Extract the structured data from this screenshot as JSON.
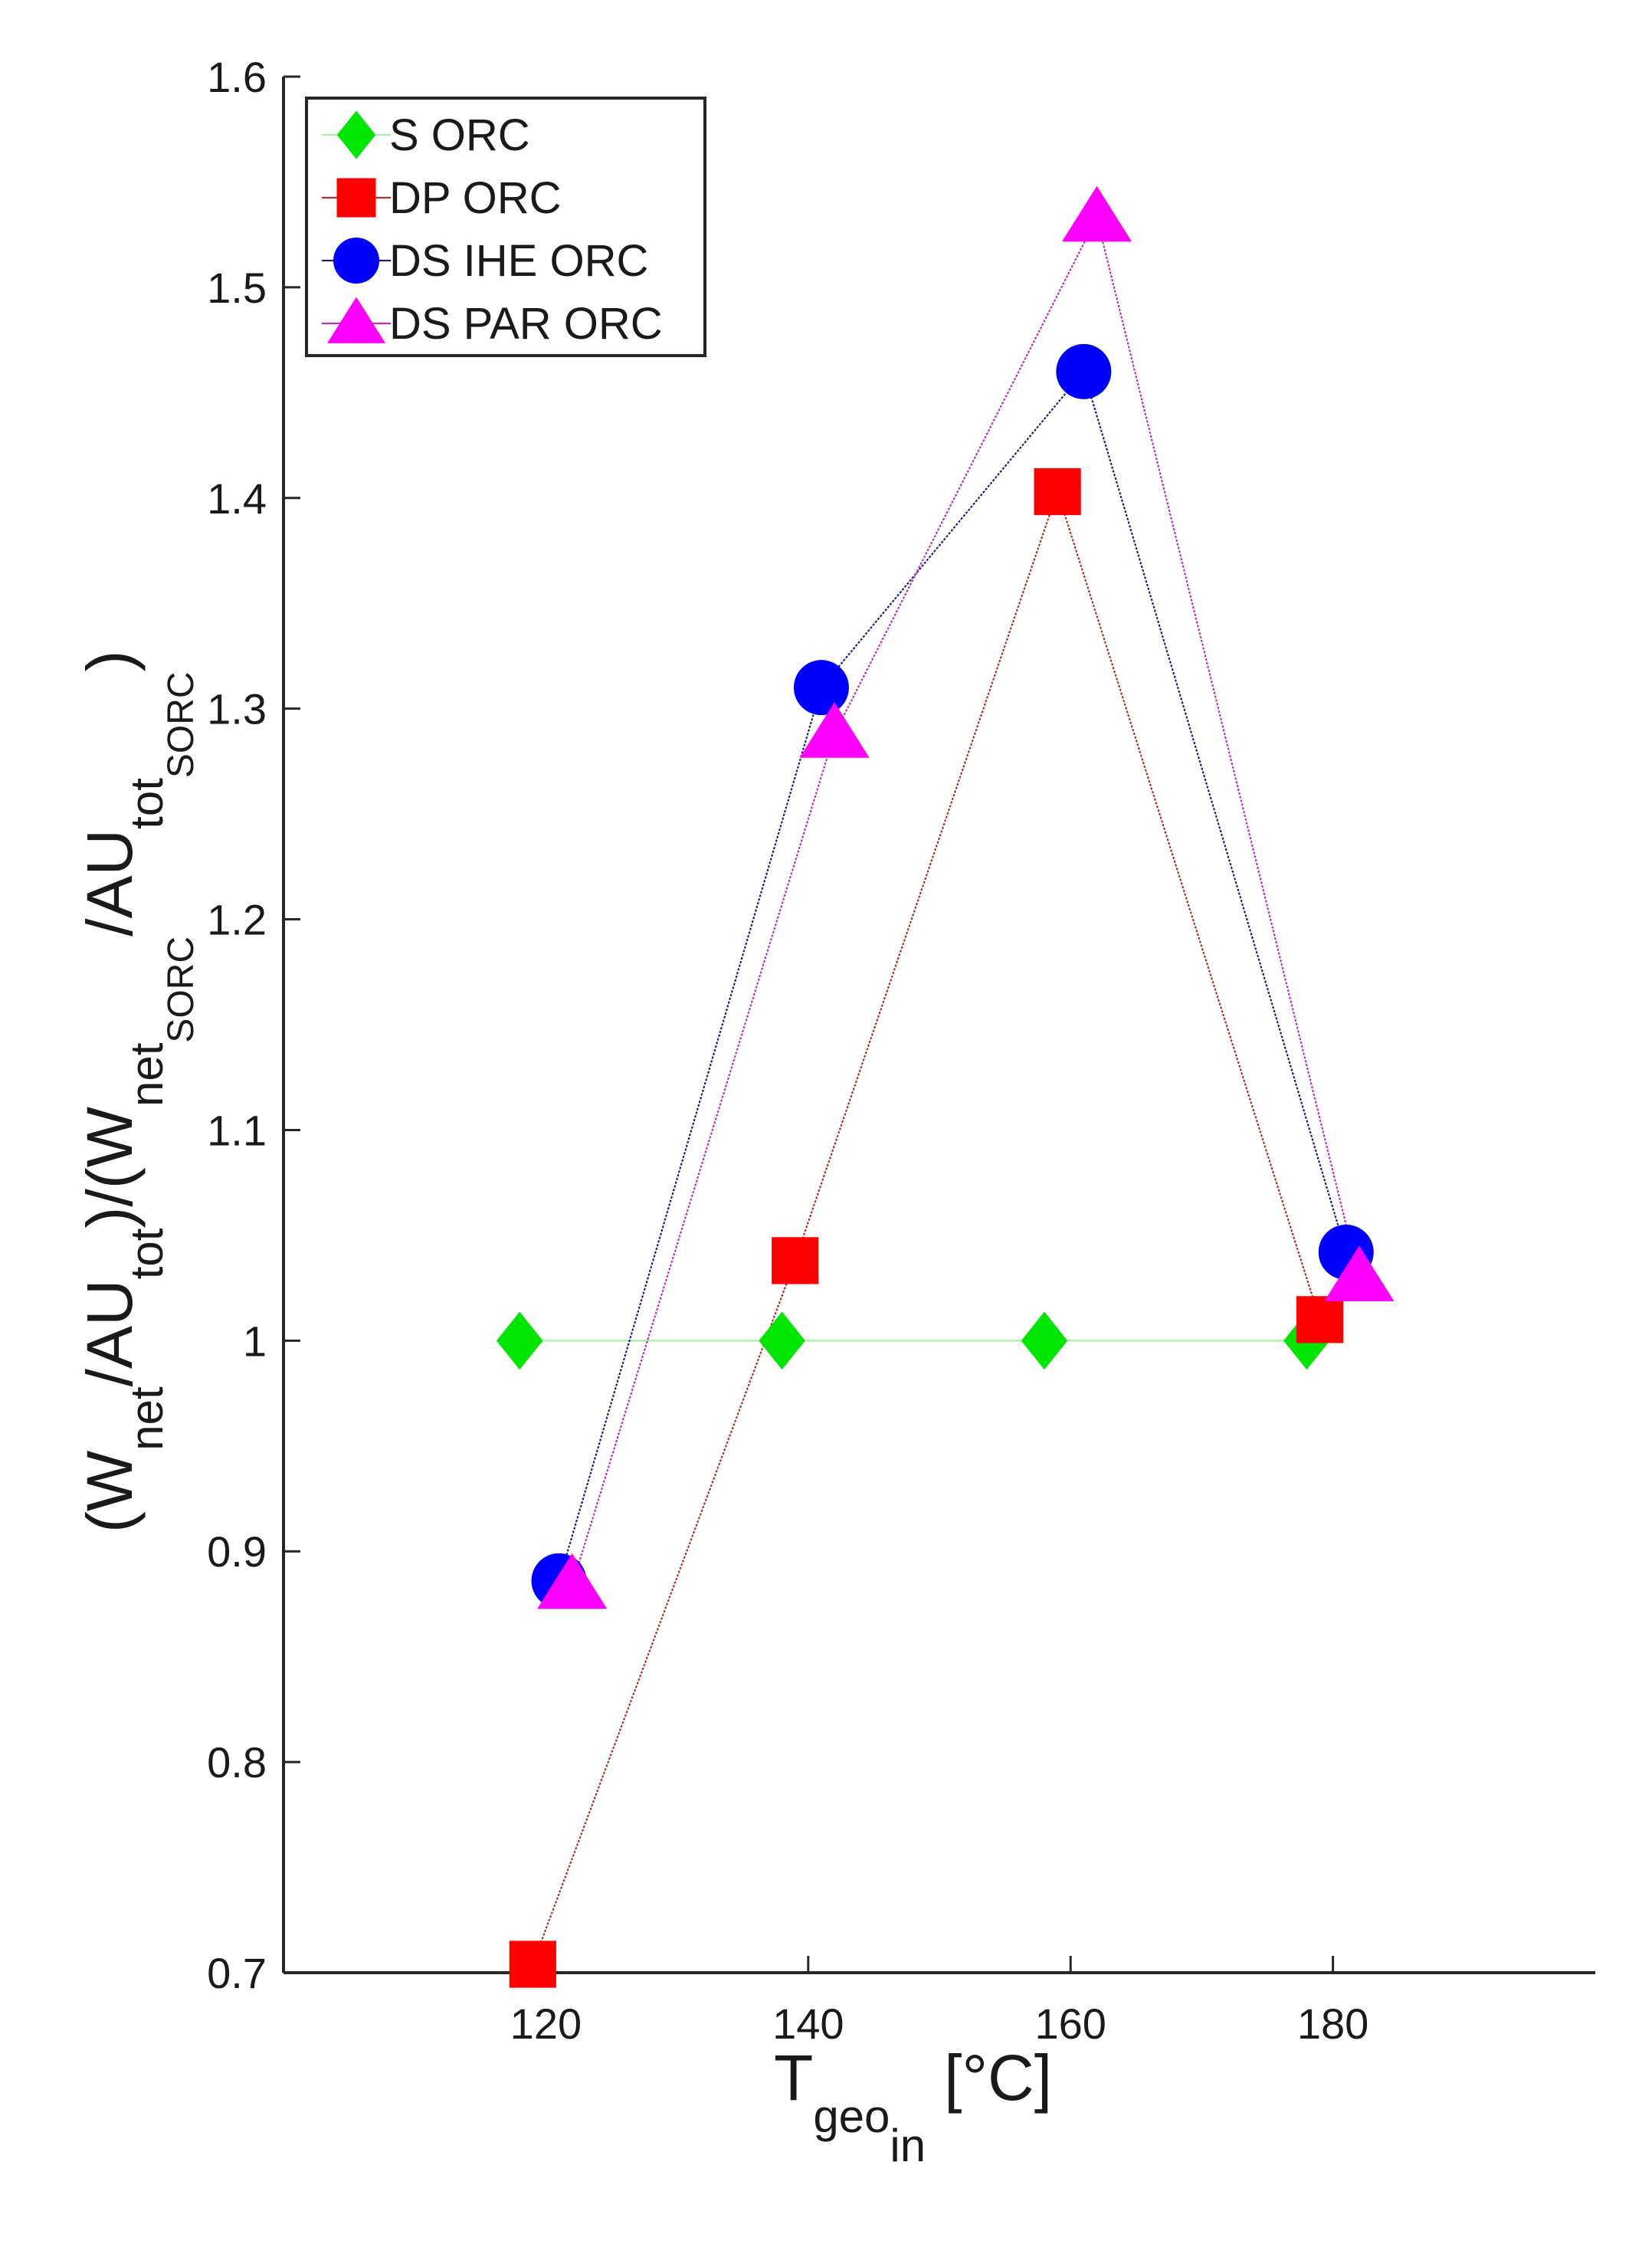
{
  "chart_data": {
    "type": "scatter",
    "xlabel": {
      "main": "T",
      "sub": "geo",
      "subsub": "in",
      "unit": "[°C]"
    },
    "ylabel": {
      "parts": [
        {
          "t": "(W",
          "s": 0
        },
        {
          "t": "net",
          "s": 1
        },
        {
          "t": "/AU",
          "s": 0
        },
        {
          "t": "tot",
          "s": 1
        },
        {
          "t": ")/(W",
          "s": 0
        },
        {
          "t": "net",
          "s": 1
        },
        {
          "t": "SORC",
          "s": 2
        },
        {
          "t": "/AU",
          "s": 0
        },
        {
          "t": "tot",
          "s": 1
        },
        {
          "t": "SORC",
          "s": 2
        },
        {
          "t": ")",
          "s": 0
        }
      ]
    },
    "xlim": [
      100,
      200
    ],
    "ylim": [
      0.7,
      1.6
    ],
    "xticks": [
      120,
      140,
      160,
      180
    ],
    "xtick_labels": [
      "120",
      "140",
      "160",
      "180"
    ],
    "yticks": [
      0.7,
      0.8,
      0.9,
      1.0,
      1.1,
      1.2,
      1.3,
      1.4,
      1.5,
      1.6
    ],
    "ytick_labels": [
      "0.7",
      "0.8",
      "0.9",
      "1",
      "1.1",
      "1.2",
      "1.3",
      "1.4",
      "1.5",
      "1.6"
    ],
    "legend_position": "top-left",
    "series": [
      {
        "name": "S ORC",
        "marker": "diamond",
        "color": "#00e600",
        "line_color": "#9ff09f",
        "x": [
          118,
          138,
          158,
          178
        ],
        "y": [
          1.0,
          1.0,
          1.0,
          1.0
        ]
      },
      {
        "name": "DP ORC",
        "marker": "square",
        "color": "#ff0000",
        "line_color": "#b03030",
        "x": [
          119,
          139,
          159,
          179
        ],
        "y": [
          0.704,
          1.038,
          1.403,
          1.01
        ]
      },
      {
        "name": "DS IHE ORC",
        "marker": "circle",
        "color": "#0000ff",
        "line_color": "#202070",
        "x": [
          121,
          141,
          161,
          181
        ],
        "y": [
          0.886,
          1.31,
          1.46,
          1.042
        ]
      },
      {
        "name": "DS PAR ORC",
        "marker": "triangle",
        "color": "#ff00ff",
        "line_color": "#c030c0",
        "x": [
          122,
          142,
          162,
          182
        ],
        "y": [
          0.884,
          1.288,
          1.533,
          1.03
        ]
      }
    ]
  }
}
